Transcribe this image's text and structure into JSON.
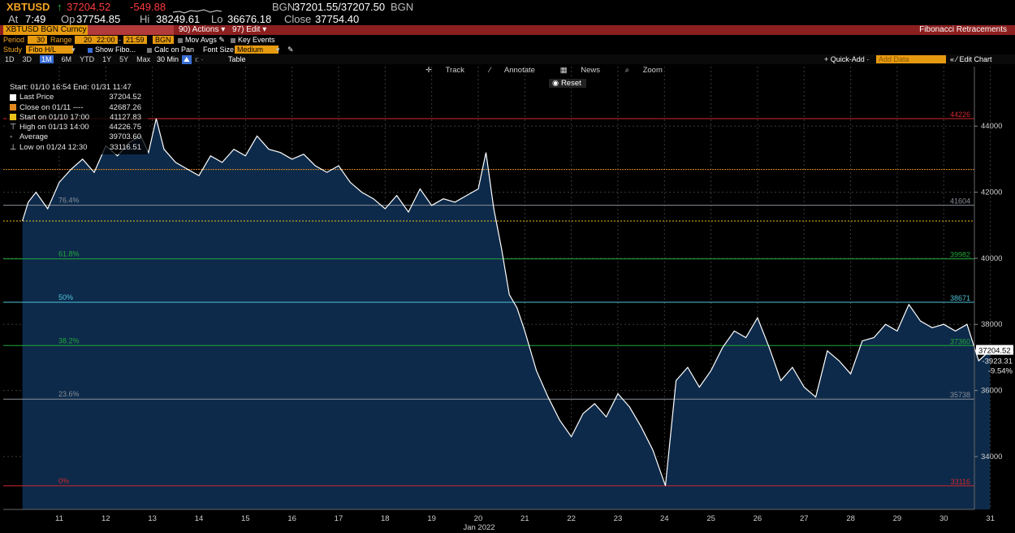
{
  "header": {
    "ticker": "XBTUSD",
    "arrow": "↑",
    "last": "37204.52",
    "change": "-549.88",
    "source": "BGN",
    "bid_ask": "37201.55/37207.50",
    "source2": "BGN",
    "at_label": "At",
    "at_time": "7:49",
    "op_label": "Op",
    "op_value": "37754.85",
    "hi_label": "Hi",
    "hi_value": "38249.61",
    "lo_label": "Lo",
    "lo_value": "36676.18",
    "close_label": "Close",
    "close_value": "37754.40"
  },
  "menubar": {
    "security": "XBTUSD BGN Curncy",
    "actions": "90) Actions ▾",
    "edit": "97) Edit ▾",
    "title": "Fibonacci Retracements"
  },
  "options1": {
    "period_label": "Period",
    "period_value": "30",
    "range_label": "Range",
    "range_value": "20",
    "time_from": "22:00",
    "time_to": "21:59",
    "source": "BGN",
    "mov_avgs": "Mov Avgs",
    "key_events": "Key Events"
  },
  "options2": {
    "study_label": "Study",
    "study_value": "Fibo H/L",
    "show_fibo": "Show Fibo...",
    "calc_on_pan": "Calc on Pan",
    "font_size_label": "Font Size",
    "font_size_value": "Medium"
  },
  "toolbar": {
    "ranges": [
      "1D",
      "3D",
      "1M",
      "6M",
      "YTD",
      "1Y",
      "5Y",
      "Max"
    ],
    "selected": "1M",
    "interval": "30 Min ▼",
    "table": "Table",
    "quick_add": "+ Quick-Add ·",
    "add_data": "Add Data",
    "edit_chart": "« ⁄ Edit Chart"
  },
  "chart_buttons": {
    "track": "Track",
    "annotate": "Annotate",
    "news": "News",
    "zoom": "Zoom",
    "reset": "Reset"
  },
  "legend": {
    "range": "Start: 01/10 16:54 End: 01/31 11:47",
    "rows": [
      {
        "label": "Last Price",
        "value": "37204.52",
        "marker": "white-square"
      },
      {
        "label": "Close on 01/11 ----",
        "value": "42687.26",
        "marker": "orange-square"
      },
      {
        "label": "Start on 01/10 17:00",
        "value": "41127.83",
        "marker": "yellow-square"
      },
      {
        "label": "High on 01/13 14:00",
        "value": "44226.75",
        "marker": "high-glyph"
      },
      {
        "label": "Average",
        "value": "39703.60",
        "marker": "dot-glyph"
      },
      {
        "label": "Low on 01/24 12:30",
        "value": "33116.51",
        "marker": "low-glyph"
      }
    ]
  },
  "colors": {
    "area_fill": "#0d2a4a",
    "price_line": "#ffffff",
    "fib_red": "#d0282f",
    "fib_grey": "#8a8f99",
    "fib_green": "#22a83a",
    "fib_cyan": "#4fc3d9",
    "close_line": "#e0891f",
    "start_line": "#e8c21a",
    "amber": "#f5a623",
    "menubar": "#8c1f1f",
    "price_label_bg": "#ffffff"
  },
  "chart_data": {
    "type": "area",
    "xlabel": "Jan 2022",
    "ylim": [
      32400,
      45800
    ],
    "x_ticks": [
      "11",
      "12",
      "13",
      "14",
      "15",
      "16",
      "17",
      "18",
      "19",
      "20",
      "21",
      "22",
      "23",
      "24",
      "25",
      "26",
      "27",
      "28",
      "29",
      "30",
      "31"
    ],
    "y_ticks": [
      34000,
      36000,
      38000,
      40000,
      42000,
      44000
    ],
    "grid": true,
    "fib_levels": [
      {
        "label": "100%",
        "value": 44226,
        "value_label": "44226",
        "color": "#d0282f"
      },
      {
        "label": "76.4%",
        "value": 41604,
        "value_label": "41604",
        "color": "#8a8f99"
      },
      {
        "label": "61.8%",
        "value": 39982,
        "value_label": "39982",
        "color": "#22a83a"
      },
      {
        "label": "50%",
        "value": 38671,
        "value_label": "38671",
        "color": "#4fc3d9"
      },
      {
        "label": "38.2%",
        "value": 37360,
        "value_label": "37360",
        "color": "#22a83a"
      },
      {
        "label": "23.6%",
        "value": 35738,
        "value_label": "35738",
        "color": "#8a8f99"
      },
      {
        "label": "0%",
        "value": 33116,
        "value_label": "33116",
        "color": "#d0282f"
      }
    ],
    "reference_lines": [
      {
        "name": "Close on 01/11",
        "value": 42687.26,
        "color": "#e0891f"
      },
      {
        "name": "Start on 01/10 17:00",
        "value": 41127.83,
        "color": "#e8c21a"
      }
    ],
    "last_price_label": "37204.52",
    "change_label": "-3923.31",
    "pct_label": "-9.54%",
    "series": [
      {
        "x": [
          "01/10 17:00",
          "01/10 20:00",
          "01/11 00:00",
          "01/11 06:00",
          "01/11 12:00",
          "01/11 18:00",
          "01/12 00:00",
          "01/12 06:00",
          "01/12 12:00",
          "01/12 18:00",
          "01/13 00:00",
          "01/13 06:00",
          "01/13 10:00",
          "01/13 14:00",
          "01/13 18:00",
          "01/14 00:00",
          "01/14 06:00",
          "01/14 12:00",
          "01/14 18:00",
          "01/15 00:00",
          "01/15 06:00",
          "01/15 12:00",
          "01/15 18:00",
          "01/16 00:00",
          "01/16 06:00",
          "01/16 12:00",
          "01/16 18:00",
          "01/17 00:00",
          "01/17 06:00",
          "01/17 12:00",
          "01/17 18:00",
          "01/18 00:00",
          "01/18 06:00",
          "01/18 12:00",
          "01/18 18:00",
          "01/19 00:00",
          "01/19 06:00",
          "01/19 12:00",
          "01/19 18:00",
          "01/20 00:00",
          "01/20 06:00",
          "01/20 12:00",
          "01/20 16:00",
          "01/20 20:00",
          "01/21 00:00",
          "01/21 04:00",
          "01/21 08:00",
          "01/21 12:00",
          "01/21 18:00",
          "01/22 00:00",
          "01/22 06:00",
          "01/22 12:00",
          "01/22 18:00",
          "01/23 00:00",
          "01/23 06:00",
          "01/23 12:00",
          "01/23 18:00",
          "01/24 00:00",
          "01/24 06:00",
          "01/24 12:30",
          "01/24 18:00",
          "01/25 00:00",
          "01/25 06:00",
          "01/25 12:00",
          "01/25 18:00",
          "01/26 00:00",
          "01/26 06:00",
          "01/26 12:00",
          "01/26 18:00",
          "01/27 00:00",
          "01/27 06:00",
          "01/27 12:00",
          "01/27 18:00",
          "01/28 00:00",
          "01/28 06:00",
          "01/28 12:00",
          "01/28 18:00",
          "01/29 00:00",
          "01/29 06:00",
          "01/29 12:00",
          "01/29 18:00",
          "01/30 00:00",
          "01/30 06:00",
          "01/30 12:00",
          "01/30 18:00",
          "01/31 00:00",
          "01/31 06:00",
          "01/31 11:47"
        ],
        "values": [
          41127.83,
          41700,
          42000,
          41500,
          42300,
          42687,
          43000,
          42600,
          43400,
          43100,
          43500,
          43700,
          43200,
          44226.75,
          43300,
          42900,
          42700,
          42500,
          43100,
          42900,
          43300,
          43100,
          43700,
          43300,
          43200,
          43000,
          43150,
          42800,
          42600,
          42800,
          42300,
          42000,
          41800,
          41500,
          41900,
          41400,
          42100,
          41600,
          41800,
          41700,
          41900,
          42100,
          43200,
          41500,
          40300,
          38900,
          38500,
          37800,
          36600,
          35800,
          35100,
          34600,
          35300,
          35600,
          35200,
          35900,
          35500,
          34900,
          34200,
          33116.51,
          36300,
          36700,
          36100,
          36600,
          37300,
          37800,
          37600,
          38200,
          37300,
          36300,
          36700,
          36100,
          35800,
          37200,
          36900,
          36500,
          37500,
          37600,
          38000,
          37800,
          38600,
          38100,
          37900,
          38000,
          37800,
          38000,
          36900,
          37204.52
        ]
      }
    ]
  }
}
